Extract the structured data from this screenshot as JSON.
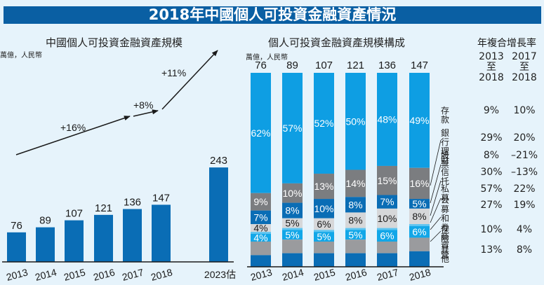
{
  "title": "2018年中國個人可投資金融資產情況",
  "chart_data": [
    {
      "type": "bar",
      "title": "中國個人可投資金融資產規模",
      "unit_label": "萬億，人民幣",
      "categories": [
        "2013",
        "2014",
        "2015",
        "2016",
        "2017",
        "2018",
        "2023估"
      ],
      "values": [
        76,
        89,
        107,
        121,
        136,
        147,
        243
      ],
      "growth_annotations": [
        {
          "label": "+16%",
          "from": "2013",
          "to": "2017"
        },
        {
          "label": "+8%",
          "from": "2017",
          "to": "2018"
        },
        {
          "label": "+11%",
          "from": "2018",
          "to": "2023估"
        }
      ],
      "ylim": [
        0,
        260
      ]
    },
    {
      "type": "bar",
      "stacked": true,
      "title": "個人可投資金融資產規模構成",
      "unit_label": "萬億，人民幣",
      "categories": [
        "2013",
        "2014",
        "2015",
        "2016",
        "2017",
        "2018"
      ],
      "totals": [
        76,
        89,
        107,
        121,
        136,
        147
      ],
      "series": [
        {
          "name": "存款",
          "color": "#0e9ee3",
          "values": [
            62,
            57,
            52,
            50,
            48,
            49
          ],
          "labeled": true,
          "label_color": "#ffffff"
        },
        {
          "name": "銀行理財",
          "color": "#7b7d80",
          "values": [
            9,
            10,
            13,
            14,
            15,
            16
          ],
          "labeled": true,
          "label_color": "#ffffff"
        },
        {
          "name": "股票",
          "color": "#0a6db5",
          "values": [
            7,
            8,
            10,
            8,
            7,
            5
          ],
          "labeled": true,
          "label_color": "#ffffff"
        },
        {
          "name": "信託",
          "color": "#d6d7d9",
          "values": [
            4,
            5,
            6,
            8,
            10,
            8
          ],
          "labeled": true,
          "label_color": "#1a1a1a"
        },
        {
          "name": "私募",
          "color": "#5ec4f0",
          "values": [
            1,
            1,
            1,
            1,
            1,
            1
          ],
          "labeled": false,
          "label_color": "#ffffff"
        },
        {
          "name": "公募和券商資管",
          "color": "#12a7e8",
          "values": [
            4,
            5,
            5,
            5,
            6,
            6
          ],
          "labeled": true,
          "label_color": "#ffffff"
        },
        {
          "name": "保險",
          "color": "#9a9b9e",
          "values": [
            7,
            7,
            6,
            7,
            6,
            7
          ],
          "labeled": false,
          "label_color": "#ffffff"
        },
        {
          "name": "其他",
          "color": "#0a6db5",
          "values": [
            6,
            7,
            7,
            7,
            7,
            8
          ],
          "labeled": false,
          "label_color": "#ffffff"
        }
      ]
    },
    {
      "type": "table",
      "title": "年複合增長率",
      "columns": [
        {
          "label_lines": [
            "2013",
            "至",
            "2018"
          ]
        },
        {
          "label_lines": [
            "2017",
            "至",
            "2018"
          ]
        }
      ],
      "rows": [
        {
          "label_lines": [
            "存款"
          ],
          "values": [
            "9%",
            "10%"
          ]
        },
        {
          "label_lines": [
            "銀行",
            "理財"
          ],
          "values": [
            "29%",
            "20%"
          ]
        },
        {
          "label_lines": [
            "股票"
          ],
          "values": [
            "8%",
            "–21%"
          ]
        },
        {
          "label_lines": [
            "信托"
          ],
          "values": [
            "30%",
            "–13%"
          ]
        },
        {
          "label_lines": [
            "私募"
          ],
          "values": [
            "57%",
            "22%"
          ]
        },
        {
          "label_lines": [
            "公募和",
            "券商資管"
          ],
          "values": [
            "27%",
            "19%"
          ]
        },
        {
          "label_lines": [
            "保險"
          ],
          "values": [
            "10%",
            "4%"
          ]
        },
        {
          "label_lines": [
            "其他"
          ],
          "values": [
            "13%",
            "8%"
          ]
        }
      ]
    }
  ],
  "colors": {
    "title_bar": "#0a5fa3",
    "bar": "#0a6db5",
    "background": "#e6f3fb"
  }
}
